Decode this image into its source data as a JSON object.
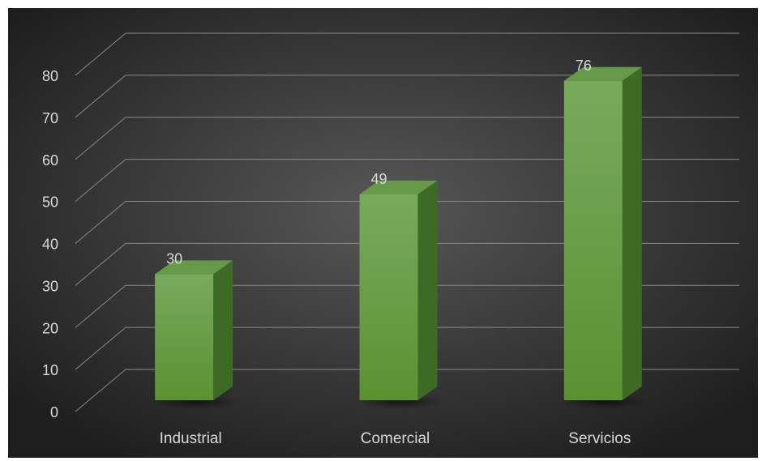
{
  "chart_data": {
    "type": "bar",
    "style": "3d-column",
    "categories": [
      "Industrial",
      "Comercial",
      "Servicios"
    ],
    "values": [
      30,
      49,
      76
    ],
    "data_labels": [
      "30",
      "49",
      "76"
    ],
    "ylim": [
      0,
      80
    ],
    "y_ticks": [
      "0",
      "10",
      "20",
      "30",
      "40",
      "50",
      "60",
      "70",
      "80"
    ],
    "grid": true,
    "legend": "none",
    "colors": {
      "background_center": "#575757",
      "background_edge": "#1e1e1e",
      "bar_front_top": "#79a95d",
      "bar_front_bottom": "#5a9232",
      "bar_side": "#3d6b26",
      "bar_top": "#679a48",
      "grid": "#8a8a8a",
      "text": "#d9d9d9"
    }
  }
}
